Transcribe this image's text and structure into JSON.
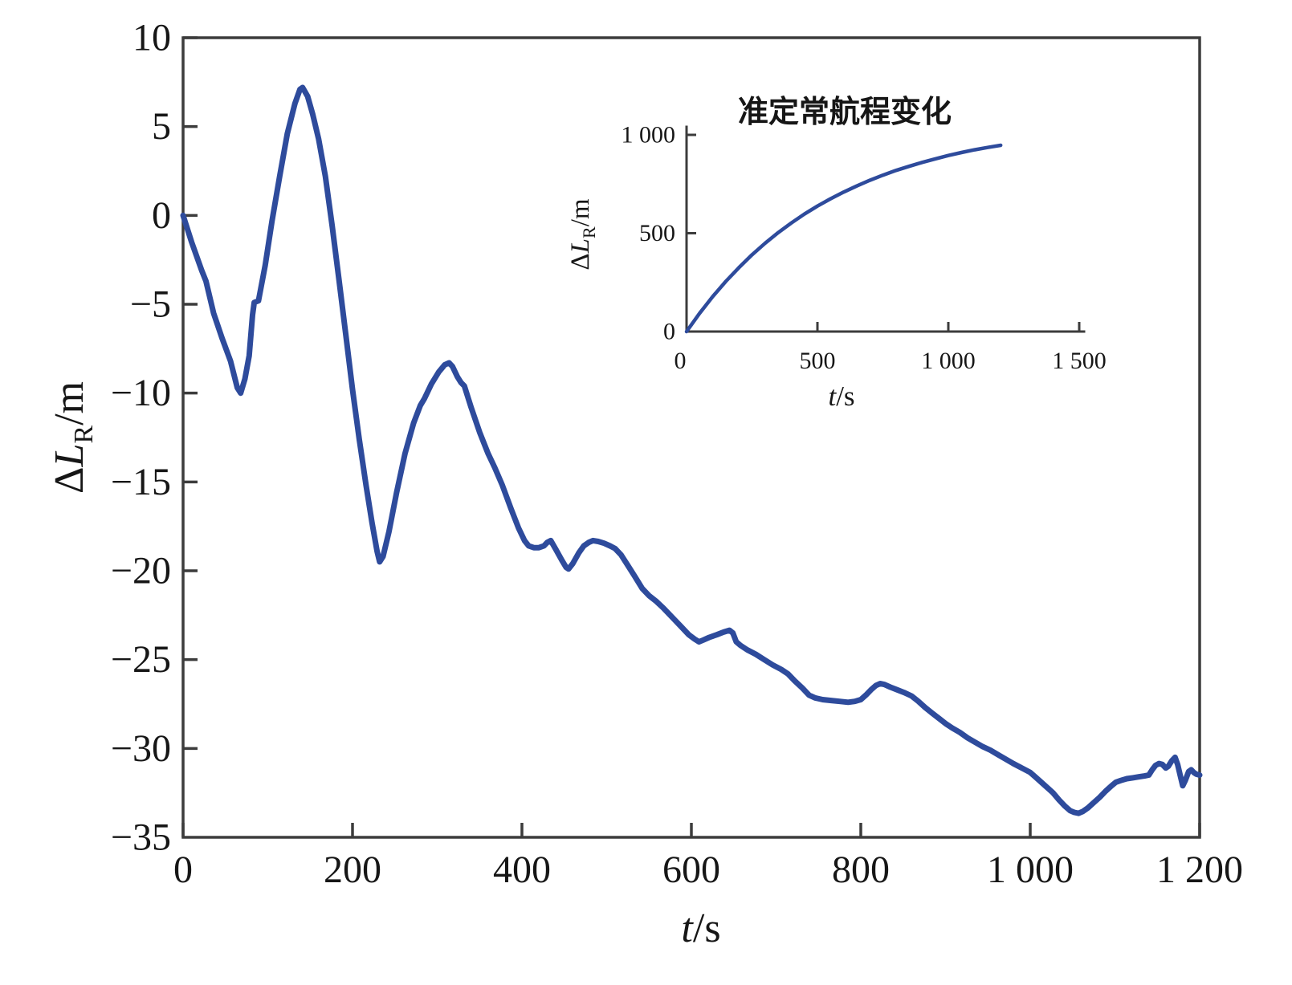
{
  "figure": {
    "background": "#ffffff",
    "axis_color": "#3c3c3c",
    "text_color": "#161616"
  },
  "chart_data": [
    {
      "id": "main",
      "type": "line",
      "title": "",
      "xlabel": {
        "symbol": "t",
        "unit": "/s"
      },
      "ylabel": {
        "delta": "Δ",
        "symbol": "L",
        "sub": "R",
        "unit": "/m"
      },
      "xlim": [
        0,
        1200
      ],
      "ylim": [
        -35,
        10
      ],
      "grid": false,
      "legend": "none",
      "frame": true,
      "line_color": "#2e4b9c",
      "xticks": [
        {
          "value": 0,
          "label": "0"
        },
        {
          "value": 200,
          "label": "200"
        },
        {
          "value": 400,
          "label": "400"
        },
        {
          "value": 600,
          "label": "600"
        },
        {
          "value": 800,
          "label": "800"
        },
        {
          "value": 1000,
          "label": "1 000"
        },
        {
          "value": 1200,
          "label": "1 200"
        }
      ],
      "yticks": [
        {
          "value": 10,
          "label": "10"
        },
        {
          "value": 5,
          "label": "5"
        },
        {
          "value": 0,
          "label": "0"
        },
        {
          "value": -5,
          "label": "−5"
        },
        {
          "value": -10,
          "label": "−10"
        },
        {
          "value": -15,
          "label": "−15"
        },
        {
          "value": -20,
          "label": "−20"
        },
        {
          "value": -25,
          "label": "−25"
        },
        {
          "value": -30,
          "label": "−30"
        },
        {
          "value": -35,
          "label": "−35"
        }
      ],
      "points": [
        [
          0,
          0
        ],
        [
          10,
          -1.5
        ],
        [
          22,
          -3.1
        ],
        [
          27,
          -3.7
        ],
        [
          36,
          -5.5
        ],
        [
          46,
          -6.9
        ],
        [
          56,
          -8.2
        ],
        [
          64,
          -9.7
        ],
        [
          68,
          -10.0
        ],
        [
          73,
          -9.2
        ],
        [
          78,
          -7.9
        ],
        [
          82,
          -5.6
        ],
        [
          84,
          -4.9
        ],
        [
          89,
          -4.8
        ],
        [
          97,
          -2.8
        ],
        [
          105,
          -0.3
        ],
        [
          114,
          2.2
        ],
        [
          123,
          4.6
        ],
        [
          132,
          6.3
        ],
        [
          138,
          7.1
        ],
        [
          141,
          7.2
        ],
        [
          147,
          6.7
        ],
        [
          153,
          5.7
        ],
        [
          160,
          4.3
        ],
        [
          168,
          2.2
        ],
        [
          176,
          -0.6
        ],
        [
          184,
          -3.6
        ],
        [
          192,
          -6.7
        ],
        [
          200,
          -9.8
        ],
        [
          208,
          -12.6
        ],
        [
          216,
          -15.2
        ],
        [
          223,
          -17.3
        ],
        [
          229,
          -18.9
        ],
        [
          232,
          -19.5
        ],
        [
          236,
          -19.2
        ],
        [
          243,
          -17.8
        ],
        [
          252,
          -15.6
        ],
        [
          262,
          -13.4
        ],
        [
          272,
          -11.7
        ],
        [
          280,
          -10.7
        ],
        [
          285,
          -10.3
        ],
        [
          293,
          -9.5
        ],
        [
          302,
          -8.8
        ],
        [
          309,
          -8.4
        ],
        [
          314,
          -8.3
        ],
        [
          318,
          -8.5
        ],
        [
          324,
          -9.1
        ],
        [
          328,
          -9.4
        ],
        [
          332,
          -9.6
        ],
        [
          340,
          -10.8
        ],
        [
          350,
          -12.2
        ],
        [
          360,
          -13.4
        ],
        [
          368,
          -14.2
        ],
        [
          377,
          -15.2
        ],
        [
          387,
          -16.5
        ],
        [
          396,
          -17.6
        ],
        [
          403,
          -18.3
        ],
        [
          408,
          -18.6
        ],
        [
          414,
          -18.7
        ],
        [
          420,
          -18.7
        ],
        [
          426,
          -18.6
        ],
        [
          430,
          -18.4
        ],
        [
          434,
          -18.3
        ],
        [
          440,
          -18.8
        ],
        [
          447,
          -19.4
        ],
        [
          452,
          -19.8
        ],
        [
          455,
          -19.9
        ],
        [
          460,
          -19.6
        ],
        [
          467,
          -19.0
        ],
        [
          473,
          -18.6
        ],
        [
          479,
          -18.4
        ],
        [
          484,
          -18.3
        ],
        [
          490,
          -18.35
        ],
        [
          497,
          -18.45
        ],
        [
          504,
          -18.6
        ],
        [
          510,
          -18.75
        ],
        [
          517,
          -19.1
        ],
        [
          525,
          -19.7
        ],
        [
          533,
          -20.3
        ],
        [
          542,
          -21.0
        ],
        [
          550,
          -21.4
        ],
        [
          558,
          -21.7
        ],
        [
          567,
          -22.1
        ],
        [
          577,
          -22.6
        ],
        [
          587,
          -23.1
        ],
        [
          597,
          -23.6
        ],
        [
          604,
          -23.85
        ],
        [
          609,
          -24.0
        ],
        [
          614,
          -23.9
        ],
        [
          621,
          -23.75
        ],
        [
          630,
          -23.6
        ],
        [
          638,
          -23.45
        ],
        [
          645,
          -23.35
        ],
        [
          649,
          -23.5
        ],
        [
          653,
          -24.0
        ],
        [
          658,
          -24.2
        ],
        [
          666,
          -24.45
        ],
        [
          676,
          -24.7
        ],
        [
          686,
          -25.0
        ],
        [
          696,
          -25.3
        ],
        [
          706,
          -25.55
        ],
        [
          714,
          -25.8
        ],
        [
          722,
          -26.2
        ],
        [
          731,
          -26.6
        ],
        [
          739,
          -27.0
        ],
        [
          746,
          -27.15
        ],
        [
          755,
          -27.25
        ],
        [
          765,
          -27.3
        ],
        [
          775,
          -27.35
        ],
        [
          785,
          -27.4
        ],
        [
          793,
          -27.35
        ],
        [
          800,
          -27.25
        ],
        [
          806,
          -27.0
        ],
        [
          812,
          -26.7
        ],
        [
          818,
          -26.45
        ],
        [
          823,
          -26.35
        ],
        [
          828,
          -26.4
        ],
        [
          835,
          -26.55
        ],
        [
          843,
          -26.7
        ],
        [
          851,
          -26.85
        ],
        [
          860,
          -27.05
        ],
        [
          868,
          -27.35
        ],
        [
          876,
          -27.7
        ],
        [
          884,
          -28.0
        ],
        [
          892,
          -28.3
        ],
        [
          900,
          -28.6
        ],
        [
          908,
          -28.85
        ],
        [
          917,
          -29.1
        ],
        [
          926,
          -29.4
        ],
        [
          935,
          -29.65
        ],
        [
          944,
          -29.9
        ],
        [
          953,
          -30.1
        ],
        [
          962,
          -30.35
        ],
        [
          971,
          -30.6
        ],
        [
          980,
          -30.85
        ],
        [
          990,
          -31.1
        ],
        [
          1000,
          -31.35
        ],
        [
          1006,
          -31.6
        ],
        [
          1013,
          -31.9
        ],
        [
          1020,
          -32.2
        ],
        [
          1027,
          -32.5
        ],
        [
          1034,
          -32.9
        ],
        [
          1041,
          -33.25
        ],
        [
          1047,
          -33.5
        ],
        [
          1052,
          -33.6
        ],
        [
          1057,
          -33.65
        ],
        [
          1062,
          -33.55
        ],
        [
          1068,
          -33.35
        ],
        [
          1075,
          -33.05
        ],
        [
          1082,
          -32.75
        ],
        [
          1089,
          -32.4
        ],
        [
          1096,
          -32.1
        ],
        [
          1101,
          -31.9
        ],
        [
          1107,
          -31.8
        ],
        [
          1114,
          -31.7
        ],
        [
          1121,
          -31.65
        ],
        [
          1128,
          -31.6
        ],
        [
          1135,
          -31.55
        ],
        [
          1140,
          -31.5
        ],
        [
          1144,
          -31.2
        ],
        [
          1148,
          -30.95
        ],
        [
          1152,
          -30.85
        ],
        [
          1156,
          -30.9
        ],
        [
          1160,
          -31.1
        ],
        [
          1163,
          -31.0
        ],
        [
          1167,
          -30.7
        ],
        [
          1171,
          -30.5
        ],
        [
          1174,
          -30.9
        ],
        [
          1177,
          -31.5
        ],
        [
          1180,
          -32.1
        ],
        [
          1183,
          -31.8
        ],
        [
          1187,
          -31.3
        ],
        [
          1190,
          -31.2
        ],
        [
          1193,
          -31.35
        ],
        [
          1196,
          -31.45
        ],
        [
          1200,
          -31.5
        ]
      ]
    },
    {
      "id": "inset",
      "type": "line",
      "title": "准定常航程变化",
      "xlabel": {
        "symbol": "t",
        "unit": "/s"
      },
      "ylabel": {
        "delta": "Δ",
        "symbol": "L",
        "sub": "R",
        "unit": "/m"
      },
      "xlim": [
        0,
        1500
      ],
      "ylim": [
        0,
        1000
      ],
      "grid": false,
      "legend": "none",
      "frame": false,
      "line_color": "#2e4b9c",
      "xticks": [
        {
          "value": 0,
          "label": "0"
        },
        {
          "value": 500,
          "label": "500"
        },
        {
          "value": 1000,
          "label": "1 000"
        },
        {
          "value": 1500,
          "label": "1 500"
        }
      ],
      "yticks": [
        {
          "value": 0,
          "label": "0"
        },
        {
          "value": 500,
          "label": "500"
        },
        {
          "value": 1000,
          "label": "1 000"
        }
      ],
      "points": [
        [
          0,
          0
        ],
        [
          50,
          93
        ],
        [
          100,
          178
        ],
        [
          150,
          255
        ],
        [
          200,
          325
        ],
        [
          250,
          390
        ],
        [
          300,
          449
        ],
        [
          350,
          503
        ],
        [
          400,
          552
        ],
        [
          450,
          597
        ],
        [
          500,
          638
        ],
        [
          550,
          675
        ],
        [
          600,
          709
        ],
        [
          650,
          740
        ],
        [
          700,
          769
        ],
        [
          750,
          795
        ],
        [
          800,
          819
        ],
        [
          850,
          840
        ],
        [
          900,
          860
        ],
        [
          950,
          878
        ],
        [
          1000,
          895
        ],
        [
          1050,
          910
        ],
        [
          1100,
          924
        ],
        [
          1150,
          936
        ],
        [
          1200,
          947
        ]
      ]
    }
  ]
}
